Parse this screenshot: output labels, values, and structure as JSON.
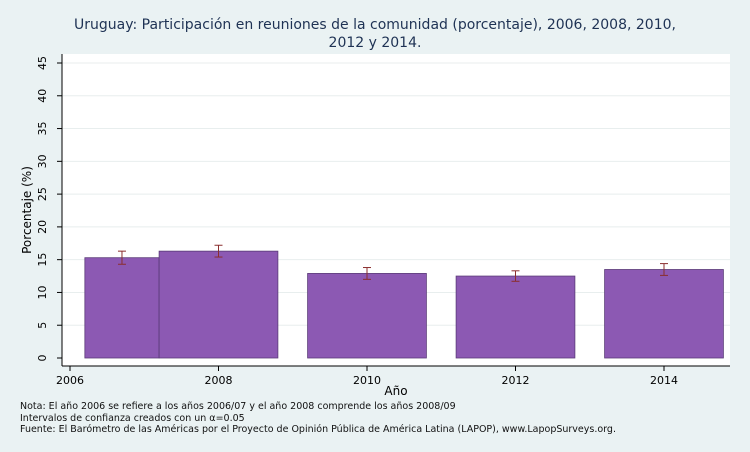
{
  "chart_data": {
    "type": "bar",
    "title_lines": [
      "Uruguay: Participación en reuniones de la comunidad (porcentaje), 2006, 2008, 2010,",
      "2012 y 2014."
    ],
    "xlabel": "Año",
    "ylabel": "Porcentaje (%)",
    "ylim": [
      0,
      45
    ],
    "yticks": [
      0,
      5,
      10,
      15,
      20,
      25,
      30,
      35,
      40,
      45
    ],
    "xlim": [
      2006,
      2015
    ],
    "xticks": [
      "2006",
      "2008",
      "2010",
      "2012",
      "2014"
    ],
    "grid": true,
    "bar_color": "#8c59b3",
    "errorbar_color": "#8b2e2e",
    "bars": [
      {
        "x_start": 2006.2,
        "x_end": 2007.2,
        "value": 15.3,
        "ci_low": 14.3,
        "ci_high": 16.3
      },
      {
        "x_start": 2007.2,
        "x_end": 2008.8,
        "value": 16.3,
        "ci_low": 15.4,
        "ci_high": 17.2
      },
      {
        "x_start": 2009.2,
        "x_end": 2010.8,
        "value": 12.9,
        "ci_low": 12.0,
        "ci_high": 13.8
      },
      {
        "x_start": 2011.2,
        "x_end": 2012.8,
        "value": 12.5,
        "ci_low": 11.7,
        "ci_high": 13.3
      },
      {
        "x_start": 2013.2,
        "x_end": 2014.8,
        "value": 13.5,
        "ci_low": 12.6,
        "ci_high": 14.4
      }
    ]
  },
  "notes": [
    "Nota: El año 2006 se refiere a los años 2006/07 y el año 2008 comprende los años 2008/09",
    "Intervalos de confianza creados con un α=0.05",
    "Fuente: El Barómetro de las Américas por el Proyecto de Opinión Pública de América Latina (LAPOP), www.LapopSurveys.org."
  ]
}
